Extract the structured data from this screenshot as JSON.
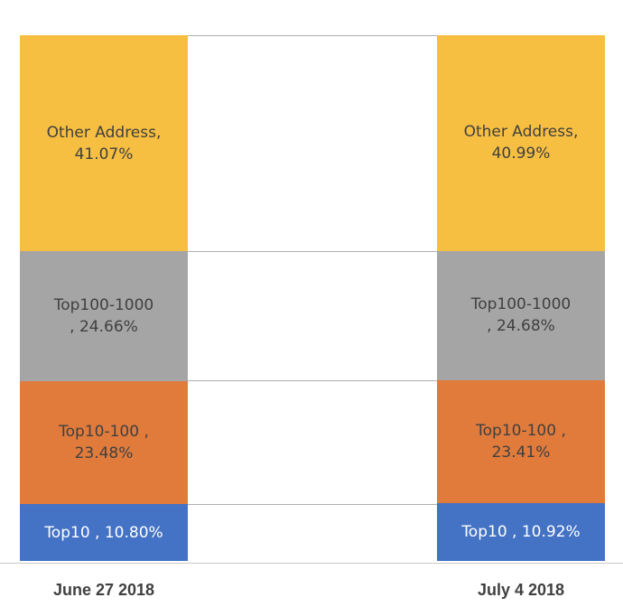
{
  "chart_data": {
    "type": "bar",
    "stacked": true,
    "normalized_percent": true,
    "categories": [
      "June 27 2018",
      "July 4 2018"
    ],
    "series": [
      {
        "name": "Top10",
        "values": [
          10.8,
          10.92
        ],
        "labels": [
          "Top10 , 10.80%",
          "Top10 , 10.92%"
        ],
        "color": "#4472c4",
        "text_color": "#ffffff"
      },
      {
        "name": "Top10-100",
        "values": [
          23.48,
          23.41
        ],
        "labels": [
          "Top10-100 ,\n23.48%",
          "Top10-100 ,\n23.41%"
        ],
        "color": "#e07b3c",
        "text_color": "#404040"
      },
      {
        "name": "Top100-1000",
        "values": [
          24.66,
          24.68
        ],
        "labels": [
          "Top100-1000\n, 24.66%",
          "Top100-1000\n, 24.68%"
        ],
        "color": "#a5a5a5",
        "text_color": "#404040"
      },
      {
        "name": "Other Address",
        "values": [
          41.07,
          40.99
        ],
        "labels": [
          "Other Address,\n41.07%",
          "Other Address,\n40.99%"
        ],
        "color": "#f6bf41",
        "text_color": "#404040"
      }
    ],
    "series_lines": true,
    "legend": "none",
    "grid": false
  }
}
